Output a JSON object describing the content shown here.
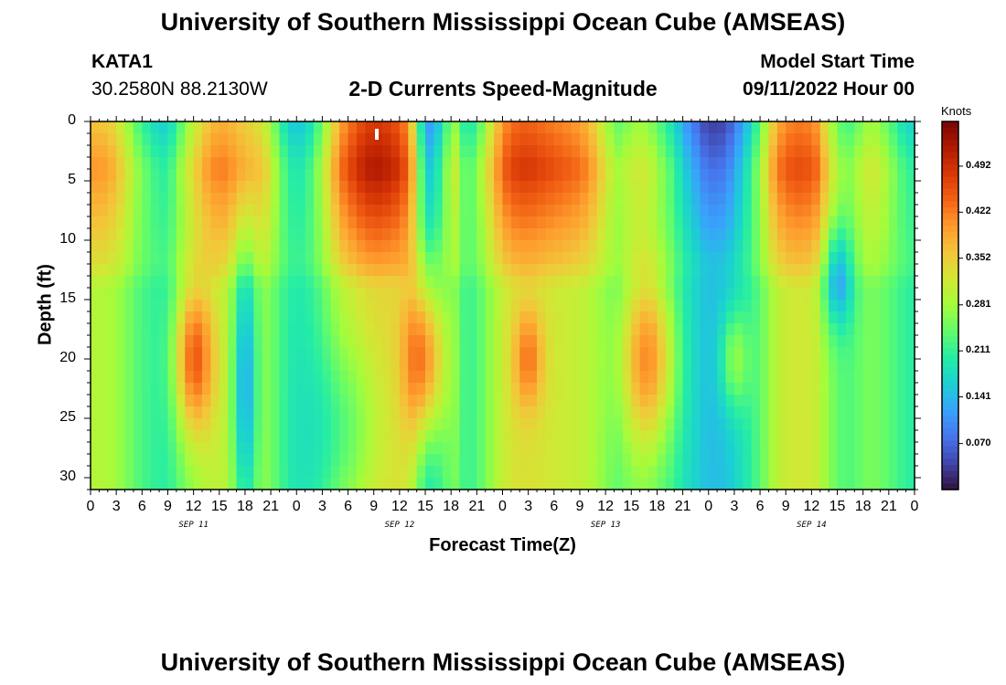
{
  "header": {
    "title": "University of Southern Mississippi Ocean Cube (AMSEAS)",
    "station": "KATA1",
    "coords": "30.2580N  88.2130W",
    "plot_title": "2-D Currents Speed-Magnitude",
    "model_label": "Model Start Time",
    "model_time": "09/11/2022 Hour 00",
    "footer_title": "University of Southern Mississippi Ocean Cube (AMSEAS)"
  },
  "chart_data": {
    "type": "heatmap",
    "title": "2-D Currents Speed-Magnitude",
    "xlabel": "Forecast Time(Z)",
    "ylabel": "Depth (ft)",
    "x_range": [
      0,
      96
    ],
    "y_range": [
      0,
      31
    ],
    "y_ticks": [
      0,
      5,
      10,
      15,
      20,
      25,
      30
    ],
    "x_tick_labels": [
      "0",
      "3",
      "6",
      "9",
      "12",
      "15",
      "18",
      "21",
      "0",
      "3",
      "6",
      "9",
      "12",
      "15",
      "18",
      "21",
      "0",
      "3",
      "6",
      "9",
      "12",
      "15",
      "18",
      "21",
      "0",
      "3",
      "6",
      "9",
      "12",
      "15",
      "18",
      "21",
      "0"
    ],
    "day_labels": [
      "SEP 11",
      "SEP 12",
      "SEP 13",
      "SEP 14"
    ],
    "colorbar": {
      "unit": "Knots",
      "ticks": [
        "0.492",
        "0.422",
        "0.352",
        "0.281",
        "0.211",
        "0.141",
        "0.070"
      ],
      "tick_values": [
        0.492,
        0.422,
        0.352,
        0.281,
        0.211,
        0.141,
        0.07
      ],
      "range": [
        0,
        0.56
      ],
      "colors": [
        "#30123b",
        "#4145ab",
        "#4675ed",
        "#39a2fc",
        "#1bcfd4",
        "#24eca6",
        "#61fc6c",
        "#a4fc3b",
        "#d1e834",
        "#f3c63a",
        "#fe9b2d",
        "#f36315",
        "#d93806",
        "#b11901",
        "#7a0402"
      ]
    },
    "surface_profile_knots": [
      0.36,
      0.36,
      0.34,
      0.3,
      0.24,
      0.2,
      0.17,
      0.16,
      0.22,
      0.28,
      0.33,
      0.37,
      0.38,
      0.37,
      0.36,
      0.34,
      0.3,
      0.23,
      0.16,
      0.15,
      0.18,
      0.24,
      0.33,
      0.4,
      0.44,
      0.47,
      0.48,
      0.47,
      0.45,
      0.4,
      0.2,
      0.1,
      0.18,
      0.28,
      0.2,
      0.2,
      0.28,
      0.36,
      0.42,
      0.44,
      0.44,
      0.43,
      0.42,
      0.41,
      0.4,
      0.38,
      0.34,
      0.28,
      0.24,
      0.26,
      0.28,
      0.26,
      0.22,
      0.18,
      0.12,
      0.08,
      0.04,
      0.03,
      0.05,
      0.1,
      0.16,
      0.24,
      0.34,
      0.4,
      0.42,
      0.42,
      0.4,
      0.32,
      0.24,
      0.22,
      0.25,
      0.28,
      0.26,
      0.22,
      0.18,
      0.16
    ]
  }
}
